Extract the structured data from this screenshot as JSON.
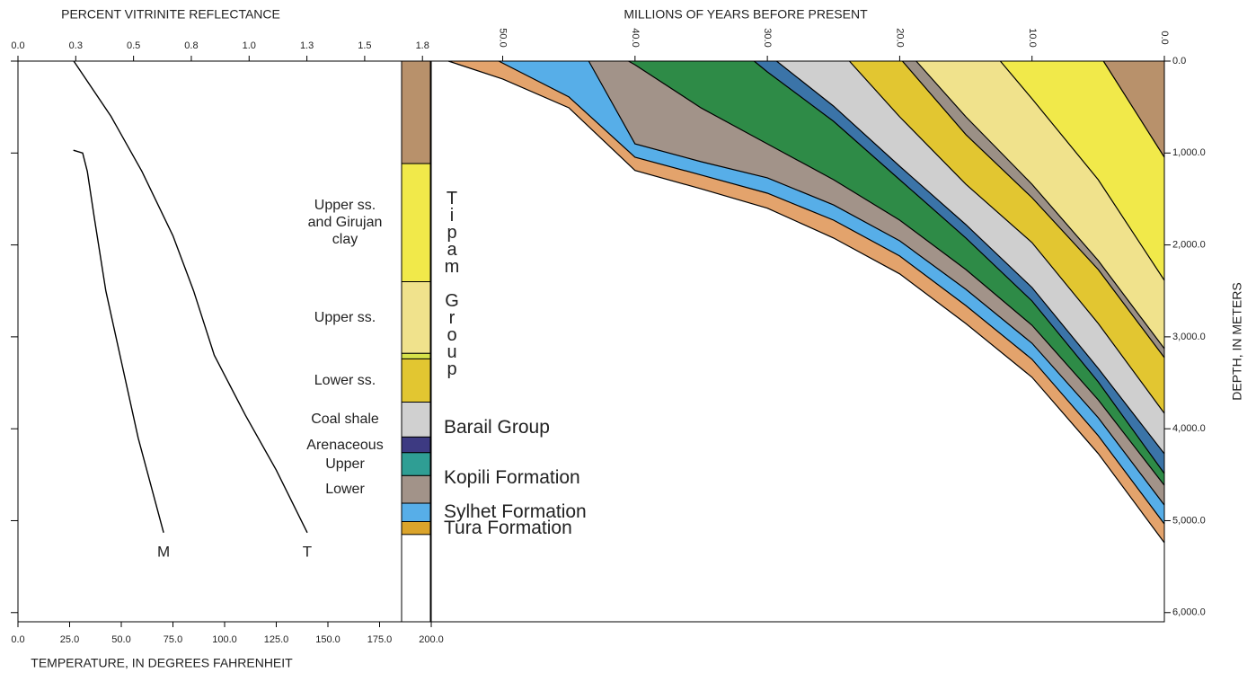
{
  "chart_data": [
    {
      "type": "line",
      "x_label": "PERCENT VITRINITE REFLECTANCE",
      "x2_label": "TEMPERATURE, IN DEGREES FAHRENHEIT",
      "xlim": [
        0,
        1.788
      ],
      "xticks": [
        {
          "value": 0,
          "label": "0.0"
        },
        {
          "value": 0.25,
          "label": "0.3"
        },
        0.5,
        {
          "value": 0.75,
          "label": "0.8"
        },
        {
          "value": 1,
          "label": "1.0"
        },
        {
          "value": 1.25,
          "label": "1.3"
        },
        1.5,
        {
          "value": 1.75,
          "label": "1.8"
        }
      ],
      "x2lim": [
        0,
        200
      ],
      "x2ticks": [
        {
          "value": 0,
          "label": "0.0"
        },
        {
          "value": 25,
          "label": "25.0"
        },
        {
          "value": 50,
          "label": "50.0"
        },
        {
          "value": 75,
          "label": "75.0"
        },
        {
          "value": 100,
          "label": "100.0"
        },
        {
          "value": 125,
          "label": "125.0"
        },
        {
          "value": 150,
          "label": "150.0"
        },
        {
          "value": 175,
          "label": "175.0"
        },
        {
          "value": 200,
          "label": "200.0"
        }
      ],
      "ylim": [
        0,
        6100
      ],
      "yticks": [
        0,
        1000,
        2000,
        3000,
        4000,
        5000,
        6000
      ],
      "series": [
        {
          "name": "M",
          "axis": "x",
          "color": "#000000",
          "x": [
            0.24,
            0.28,
            0.3,
            0.33,
            0.38,
            0.45,
            0.52,
            0.63
          ],
          "y": [
            970,
            1000,
            1200,
            1700,
            2500,
            3300,
            4100,
            5130
          ]
        },
        {
          "name": "T",
          "axis": "x2",
          "color": "#000000",
          "x": [
            27,
            45,
            60,
            75,
            85,
            95,
            110,
            125,
            140
          ],
          "y": [
            0,
            600,
            1200,
            1900,
            2500,
            3200,
            3850,
            4450,
            5130
          ]
        }
      ]
    },
    {
      "type": "column",
      "ylim": [
        0,
        6100
      ],
      "units": [
        {
          "name": null,
          "top": 0,
          "bottom": 1115,
          "color": "#b8916b"
        },
        {
          "name": "Upper ss. and Girujan clay",
          "top": 1115,
          "bottom": 2400,
          "color": "#f1e94a"
        },
        {
          "name": "Upper ss.",
          "top": 2400,
          "bottom": 3180,
          "color": "#f0e28c"
        },
        {
          "name": null,
          "top": 3180,
          "bottom": 3240,
          "color": "#d6e24a"
        },
        {
          "name": "Lower ss.",
          "top": 3240,
          "bottom": 3710,
          "color": "#e2c631"
        },
        {
          "name": "Coal shale",
          "top": 3710,
          "bottom": 4090,
          "color": "#d0d0d0"
        },
        {
          "name": "Arenaceous",
          "top": 4090,
          "bottom": 4260,
          "color": "#3d3a82"
        },
        {
          "name": "Upper",
          "top": 4260,
          "bottom": 4510,
          "color": "#2f9e94"
        },
        {
          "name": "Lower",
          "top": 4510,
          "bottom": 4810,
          "color": "#a29389"
        },
        {
          "name": null,
          "top": 4810,
          "bottom": 5010,
          "color": "#57aee8"
        },
        {
          "name": null,
          "top": 5010,
          "bottom": 5150,
          "color": "#dba42b"
        }
      ],
      "groups": [
        {
          "name": "Tipam Group",
          "top": 1115,
          "bottom": 3710,
          "vertical": true
        },
        {
          "name": "Barail Group",
          "top": 3710,
          "bottom": 4260,
          "vertical": false
        },
        {
          "name": "Kopili Formation",
          "top": 4260,
          "bottom": 4810,
          "vertical": false
        },
        {
          "name": "Sylhet Formation",
          "top": 4810,
          "bottom": 5010,
          "vertical": false
        },
        {
          "name": "Tura Formation",
          "top": 5010,
          "bottom": 5150,
          "vertical": false
        }
      ]
    },
    {
      "type": "area",
      "x_label": "MILLIONS OF YEARS BEFORE PRESENT",
      "y_label": "DEPTH, IN METERS",
      "xlim": [
        55.4,
        0
      ],
      "xticks": [
        {
          "value": 50,
          "label": "50.0"
        },
        {
          "value": 40,
          "label": "40.0"
        },
        {
          "value": 30,
          "label": "30.0"
        },
        {
          "value": 20,
          "label": "20.0"
        },
        {
          "value": 10,
          "label": "10.0"
        },
        {
          "value": 0,
          "label": "0.0"
        }
      ],
      "ylim": [
        0,
        6100
      ],
      "yticks": [
        {
          "value": 0,
          "label": "0.0"
        },
        {
          "value": 1000,
          "label": "1,000.0"
        },
        {
          "value": 2000,
          "label": "2,000.0"
        },
        {
          "value": 3000,
          "label": "3,000.0"
        },
        {
          "value": 4000,
          "label": "4,000.0"
        },
        {
          "value": 5000,
          "label": "5,000.0"
        },
        {
          "value": 6000,
          "label": "6,000.0"
        }
      ],
      "layers": [
        {
          "color": "#e3a36c",
          "x": [
            54.1,
            50,
            45,
            40,
            35,
            30,
            25,
            20,
            15,
            10,
            5,
            0
          ],
          "y": [
            0,
            195,
            508,
            1190,
            1390,
            1600,
            1925,
            2315,
            2855,
            3440,
            4270,
            5240
          ]
        },
        {
          "color": "#57aee8",
          "x": [
            50.3,
            45,
            40,
            35,
            30,
            25,
            20,
            15,
            10,
            5,
            0
          ],
          "y": [
            0,
            390,
            1045,
            1240,
            1437,
            1730,
            2120,
            2660,
            3245,
            4075,
            5035
          ]
        },
        {
          "color": "#a29389",
          "x": [
            43.5,
            40,
            35,
            30,
            25,
            20,
            15,
            10,
            5,
            0
          ],
          "y": [
            0,
            900,
            1095,
            1270,
            1565,
            1955,
            2483,
            3070,
            3880,
            4830
          ]
        },
        {
          "color": "#2e8b47",
          "x": [
            40.5,
            40,
            35,
            30,
            25,
            20,
            15,
            10,
            5,
            0
          ],
          "y": [
            0,
            40,
            510,
            900,
            1290,
            1730,
            2268,
            2874,
            3685,
            4615
          ]
        },
        {
          "color": "#3b74a8",
          "x": [
            31,
            30,
            25,
            20,
            15,
            10,
            5,
            0
          ],
          "y": [
            0,
            117,
            655,
            1290,
            1925,
            2610,
            3490,
            4487
          ]
        },
        {
          "color": "#cfcfcf",
          "x": [
            29.3,
            25,
            20,
            15,
            10,
            5,
            0
          ],
          "y": [
            0,
            490,
            1144,
            1779,
            2463,
            3343,
            4272
          ]
        },
        {
          "color": "#e2c631",
          "x": [
            23.8,
            20,
            15,
            10,
            5,
            0
          ],
          "y": [
            0,
            606,
            1340,
            1975,
            2854,
            3832
          ]
        },
        {
          "color": "#9b9086",
          "x": [
            19.8,
            15,
            10,
            5,
            0
          ],
          "y": [
            0,
            800,
            1486,
            2268,
            3226
          ]
        },
        {
          "color": "#f0e28c",
          "x": [
            18.75,
            15,
            10,
            5,
            0
          ],
          "y": [
            0,
            606,
            1340,
            2170,
            3128
          ]
        },
        {
          "color": "#f1e94a",
          "x": [
            12.4,
            10,
            5,
            0
          ],
          "y": [
            0,
            410,
            1290,
            2385
          ]
        },
        {
          "color": "#b8916b",
          "x": [
            4.6,
            0
          ],
          "y": [
            0,
            1046
          ]
        }
      ]
    }
  ]
}
